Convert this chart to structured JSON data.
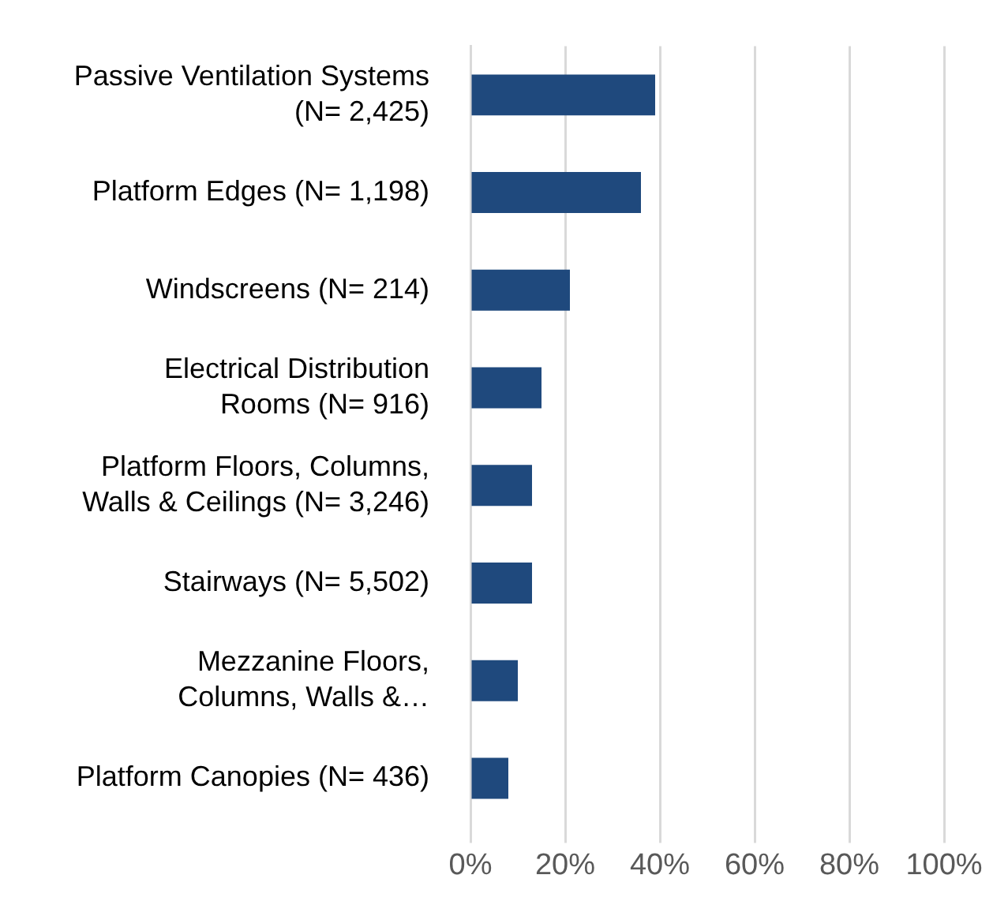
{
  "chart_data": {
    "type": "bar",
    "orientation": "horizontal",
    "categories": [
      "Passive Ventilation Systems\n(N= 2,425)",
      "Platform Edges (N= 1,198)",
      "Windscreens (N= 214)",
      "Electrical Distribution\nRooms (N= 916)",
      "Platform Floors, Columns,\nWalls & Ceilings (N= 3,246)",
      "Stairways (N= 5,502)",
      "Mezzanine Floors,\nColumns, Walls &…",
      "Platform Canopies (N= 436)"
    ],
    "values": [
      39,
      36,
      21,
      15,
      13,
      13,
      10,
      8
    ],
    "color": "#1f497d",
    "xlim": [
      0,
      100
    ],
    "xticks": [
      {
        "value": 0,
        "label": "0%"
      },
      {
        "value": 20,
        "label": "20%"
      },
      {
        "value": 40,
        "label": "40%"
      },
      {
        "value": 60,
        "label": "60%"
      },
      {
        "value": 80,
        "label": "80%"
      },
      {
        "value": 100,
        "label": "100%"
      }
    ],
    "grid": "x",
    "legend": false
  }
}
